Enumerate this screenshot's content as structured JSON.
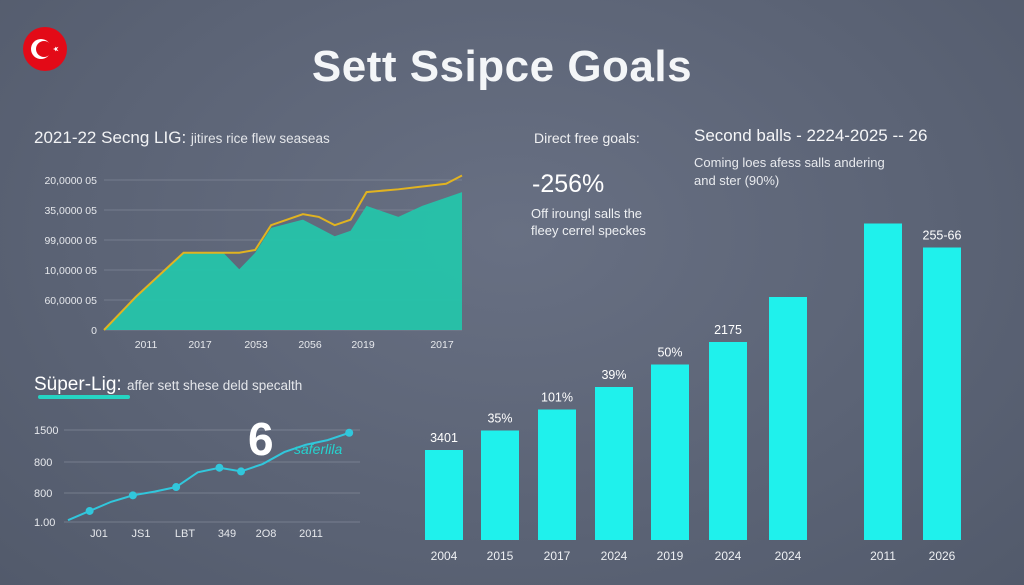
{
  "header": {
    "title": "Sett Ssipce Goals",
    "flag": "turkey-flag-icon"
  },
  "colors": {
    "background": "#5d6577",
    "area_fill": "#25c4aa",
    "line_gold": "#e1b320",
    "bar": "#1ff1ec",
    "line2": "#31c7dc"
  },
  "left_top": {
    "title": "2021-22 Secng LIG:",
    "subtitle": "jitires rice flew seaseas"
  },
  "direct": {
    "title": "Direct free goals:",
    "value": "-256%",
    "desc": "Off iroungl salls the fleey cerrel speckes"
  },
  "bars_panel": {
    "title": "Second balls - 2224-2025 -- 26",
    "desc": "Coming loes afess salls andering and ster (90%)"
  },
  "line2_panel": {
    "title": "Süper-Lig:",
    "subtitle": "affer sett shese deld specalth",
    "big_label": "6",
    "script_label": "saferlila"
  },
  "chart_data": [
    {
      "type": "area",
      "title": "2021-22 Secng LIG:",
      "y_tick_labels": [
        "0",
        "60,0000 05",
        "10,0000 05",
        "99,0000 05",
        "35,0000 05",
        "20,0000 05"
      ],
      "x_tick_labels": [
        "2011",
        "2017",
        "2053",
        "2056",
        "2019",
        "2017"
      ],
      "x": [
        0,
        4,
        10,
        15,
        17,
        19,
        21,
        25,
        27,
        29,
        31,
        33,
        37,
        40,
        43,
        45
      ],
      "series": [
        {
          "name": "area",
          "values": [
            0,
            12,
            28,
            28,
            22,
            28,
            37,
            40,
            37,
            34,
            36,
            45,
            41,
            45,
            48,
            50
          ]
        },
        {
          "name": "line",
          "values": [
            0,
            12,
            28,
            28,
            28,
            29,
            38,
            42,
            41,
            38,
            40,
            50,
            51,
            52,
            53,
            56
          ]
        }
      ],
      "ylim": [
        0,
        58
      ],
      "xlim": [
        0,
        45
      ],
      "grid": true
    },
    {
      "type": "line",
      "title": "Süper-Lig:",
      "y_tick_labels": [
        "1.00",
        "800",
        "800",
        "1500"
      ],
      "x_tick_labels": [
        "J01",
        "JS1",
        "LBT",
        "349",
        "2O8",
        "2011"
      ],
      "x": [
        0,
        1,
        2,
        3,
        4,
        5,
        6,
        7,
        8,
        9,
        10,
        11,
        12,
        13
      ],
      "values": [
        2,
        12,
        22,
        29,
        33,
        38,
        54,
        59,
        55,
        63,
        76,
        84,
        89,
        97
      ],
      "markers": [
        1,
        3,
        5,
        7,
        8,
        13
      ],
      "ylim": [
        0,
        100
      ],
      "xlim": [
        0,
        13.5
      ],
      "grid": true
    },
    {
      "type": "bar",
      "title": "Second balls - 2224-2025 -- 26",
      "categories": [
        "2004",
        "2015",
        "2017",
        "2024",
        "2019",
        "2024",
        "2024",
        "2011",
        "2026"
      ],
      "values": [
        6,
        7.3,
        8.7,
        10.2,
        11.7,
        13.2,
        16.2,
        21.1,
        19.5
      ],
      "data_labels": [
        "3401",
        "35%",
        "101%",
        "39%",
        "50%",
        "2175",
        "",
        "",
        "255-66"
      ],
      "ylim": [
        0,
        22
      ]
    }
  ]
}
